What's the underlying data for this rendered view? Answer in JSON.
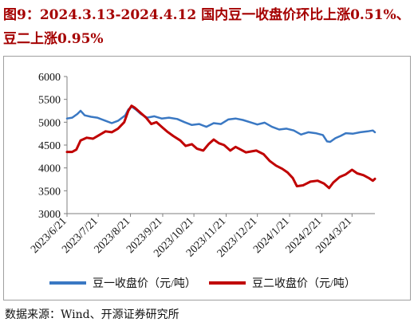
{
  "title": "图9：2024.3.13-2024.4.12 国内豆一收盘价环比上涨0.51%、豆二上涨0.95%",
  "source": "数据来源：Wind、开源证券研究所",
  "colors": {
    "series1": "#3a78c3",
    "series2": "#c00000",
    "axis": "#7f7f7f"
  },
  "chart_data": {
    "type": "line",
    "title": "",
    "xlabel": "",
    "ylabel": "",
    "ylim": [
      3000,
      6000
    ],
    "yticks": [
      3000,
      3500,
      4000,
      4500,
      5000,
      5500,
      6000
    ],
    "grid": false,
    "legend_position": "bottom",
    "xticks": [
      "2023/6/21",
      "2023/7/21",
      "2023/8/21",
      "2023/9/21",
      "2023/10/21",
      "2023/11/21",
      "2023/12/21",
      "2024/1/21",
      "2024/2/21",
      "2024/3/21"
    ],
    "x_range": [
      "2023/6/21",
      "2024/4/12"
    ],
    "series": [
      {
        "name": "豆一收盘价（元/吨）",
        "color": "#3a78c3",
        "points": [
          [
            "2023/6/21",
            5080
          ],
          [
            "2023/6/26",
            5100
          ],
          [
            "2023/7/1",
            5180
          ],
          [
            "2023/7/4",
            5250
          ],
          [
            "2023/7/8",
            5150
          ],
          [
            "2023/7/14",
            5120
          ],
          [
            "2023/7/20",
            5100
          ],
          [
            "2023/7/28",
            5030
          ],
          [
            "2023/8/3",
            4980
          ],
          [
            "2023/8/9",
            5030
          ],
          [
            "2023/8/16",
            5150
          ],
          [
            "2023/8/19",
            5280
          ],
          [
            "2023/8/22",
            5340
          ],
          [
            "2023/8/26",
            5280
          ],
          [
            "2023/8/31",
            5180
          ],
          [
            "2023/9/6",
            5100
          ],
          [
            "2023/9/13",
            5130
          ],
          [
            "2023/9/20",
            5080
          ],
          [
            "2023/9/27",
            5100
          ],
          [
            "2023/10/5",
            5070
          ],
          [
            "2023/10/12",
            5000
          ],
          [
            "2023/10/19",
            4940
          ],
          [
            "2023/10/26",
            4960
          ],
          [
            "2023/11/2",
            4900
          ],
          [
            "2023/11/9",
            4980
          ],
          [
            "2023/11/16",
            4960
          ],
          [
            "2023/11/23",
            5060
          ],
          [
            "2023/11/30",
            5080
          ],
          [
            "2023/12/7",
            5050
          ],
          [
            "2023/12/14",
            5000
          ],
          [
            "2023/12/21",
            4950
          ],
          [
            "2023/12/28",
            4990
          ],
          [
            "2024/1/4",
            4900
          ],
          [
            "2024/1/11",
            4840
          ],
          [
            "2024/1/18",
            4860
          ],
          [
            "2024/1/25",
            4820
          ],
          [
            "2024/2/1",
            4730
          ],
          [
            "2024/2/8",
            4780
          ],
          [
            "2024/2/15",
            4760
          ],
          [
            "2024/2/22",
            4720
          ],
          [
            "2024/2/26",
            4580
          ],
          [
            "2024/2/29",
            4570
          ],
          [
            "2024/3/5",
            4650
          ],
          [
            "2024/3/10",
            4700
          ],
          [
            "2024/3/15",
            4760
          ],
          [
            "2024/3/22",
            4750
          ],
          [
            "2024/3/29",
            4780
          ],
          [
            "2024/4/5",
            4800
          ],
          [
            "2024/4/10",
            4820
          ],
          [
            "2024/4/12",
            4780
          ]
        ]
      },
      {
        "name": "豆二收盘价（元/吨）",
        "color": "#c00000",
        "points": [
          [
            "2023/6/21",
            4350
          ],
          [
            "2023/6/26",
            4350
          ],
          [
            "2023/6/30",
            4400
          ],
          [
            "2023/7/4",
            4600
          ],
          [
            "2023/7/10",
            4660
          ],
          [
            "2023/7/16",
            4640
          ],
          [
            "2023/7/22",
            4720
          ],
          [
            "2023/7/28",
            4800
          ],
          [
            "2023/8/3",
            4780
          ],
          [
            "2023/8/9",
            4860
          ],
          [
            "2023/8/15",
            5000
          ],
          [
            "2023/8/19",
            5250
          ],
          [
            "2023/8/22",
            5360
          ],
          [
            "2023/8/25",
            5320
          ],
          [
            "2023/8/30",
            5220
          ],
          [
            "2023/9/5",
            5100
          ],
          [
            "2023/9/10",
            4960
          ],
          [
            "2023/9/15",
            5000
          ],
          [
            "2023/9/20",
            4900
          ],
          [
            "2023/9/25",
            4800
          ],
          [
            "2023/10/1",
            4700
          ],
          [
            "2023/10/8",
            4600
          ],
          [
            "2023/10/13",
            4480
          ],
          [
            "2023/10/19",
            4520
          ],
          [
            "2023/10/24",
            4420
          ],
          [
            "2023/10/30",
            4380
          ],
          [
            "2023/11/4",
            4520
          ],
          [
            "2023/11/9",
            4620
          ],
          [
            "2023/11/14",
            4540
          ],
          [
            "2023/11/19",
            4500
          ],
          [
            "2023/11/25",
            4380
          ],
          [
            "2023/11/30",
            4460
          ],
          [
            "2023/12/5",
            4400
          ],
          [
            "2023/12/10",
            4340
          ],
          [
            "2023/12/15",
            4360
          ],
          [
            "2023/12/20",
            4380
          ],
          [
            "2023/12/27",
            4300
          ],
          [
            "2024/1/2",
            4150
          ],
          [
            "2024/1/8",
            4050
          ],
          [
            "2024/1/14",
            3980
          ],
          [
            "2024/1/19",
            3900
          ],
          [
            "2024/1/24",
            3780
          ],
          [
            "2024/1/28",
            3600
          ],
          [
            "2024/2/3",
            3620
          ],
          [
            "2024/2/10",
            3700
          ],
          [
            "2024/2/17",
            3720
          ],
          [
            "2024/2/23",
            3660
          ],
          [
            "2024/2/28",
            3560
          ],
          [
            "2024/3/3",
            3680
          ],
          [
            "2024/3/9",
            3800
          ],
          [
            "2024/3/15",
            3860
          ],
          [
            "2024/3/21",
            3960
          ],
          [
            "2024/3/26",
            3880
          ],
          [
            "2024/4/1",
            3840
          ],
          [
            "2024/4/6",
            3780
          ],
          [
            "2024/4/10",
            3720
          ],
          [
            "2024/4/12",
            3760
          ]
        ]
      }
    ]
  }
}
